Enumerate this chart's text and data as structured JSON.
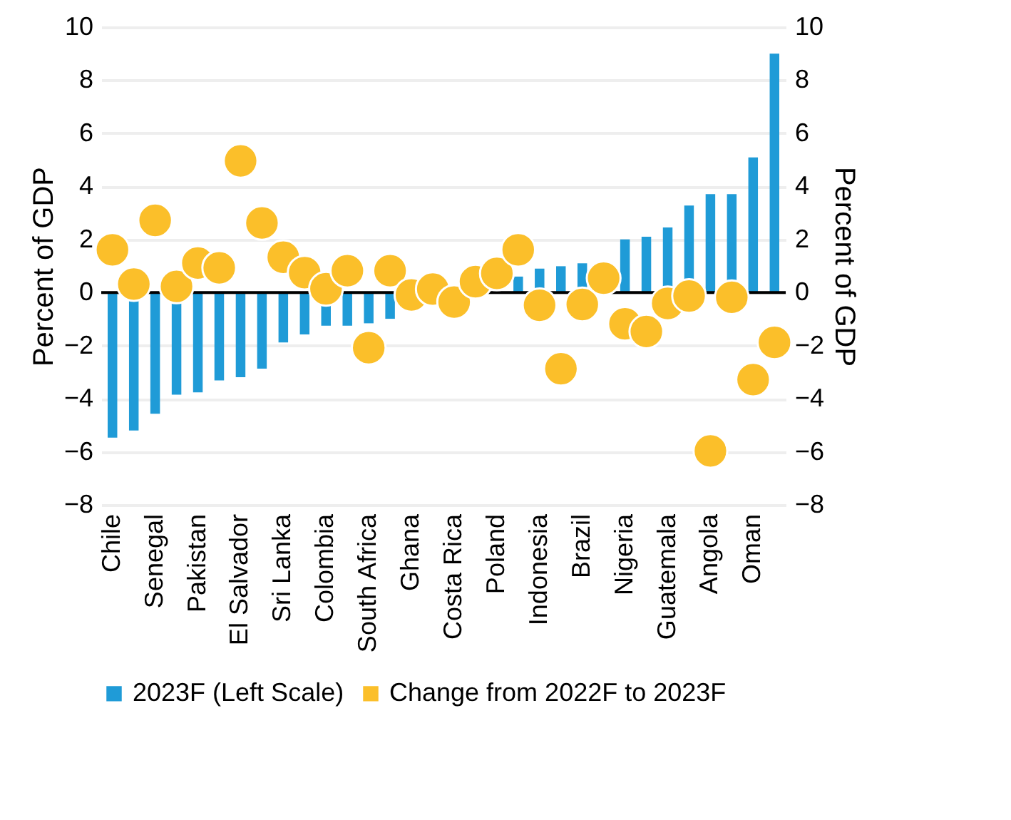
{
  "chart_data": {
    "type": "bar",
    "categories": [
      "Chile",
      null,
      "Senegal",
      null,
      "Pakistan",
      null,
      "El Salvador",
      null,
      "Sri Lanka",
      null,
      "Colombia",
      null,
      "South Africa",
      null,
      "Ghana",
      null,
      "Costa Rica",
      null,
      "Poland",
      null,
      "Indonesia",
      null,
      "Brazil",
      null,
      "Nigeria",
      null,
      "Guatemala",
      null,
      "Angola",
      null,
      "Oman",
      null
    ],
    "ylabel": "Percent of GDP",
    "y2label": "Percent of GDP",
    "ylim": [
      -8,
      10
    ],
    "yticks": [
      {
        "value": -8,
        "label": "−8"
      },
      {
        "value": -6,
        "label": "−6"
      },
      {
        "value": -4,
        "label": "−4"
      },
      {
        "value": -2,
        "label": "−2"
      },
      0,
      2,
      4,
      6,
      8,
      10
    ],
    "y2lim": [
      -8,
      10
    ],
    "y2ticks": [
      {
        "value": -8,
        "label": "−8"
      },
      {
        "value": -6,
        "label": "−6"
      },
      {
        "value": -4,
        "label": "−4"
      },
      {
        "value": -2,
        "label": "−2"
      },
      0,
      2,
      4,
      6,
      8,
      10
    ],
    "series": [
      {
        "name": "2023F (Left Scale)",
        "color": "#1f9bd7",
        "values": [
          -5.47,
          -5.2,
          -4.57,
          -3.85,
          -3.76,
          -3.31,
          -3.19,
          -2.87,
          -1.88,
          -1.58,
          -1.25,
          -1.25,
          -1.16,
          -0.99,
          null,
          null,
          null,
          null,
          null,
          0.6,
          0.9,
          0.99,
          1.1,
          null,
          2.0,
          2.1,
          2.45,
          3.28,
          3.71,
          3.71,
          5.09,
          9.0
        ]
      },
      {
        "name": "Change from 2022F to 2023F",
        "type": "scatter",
        "axis": "y2",
        "color": "#fbbf2a",
        "marker": "circle",
        "values": [
          1.61,
          0.32,
          2.72,
          0.23,
          1.11,
          0.93,
          4.96,
          2.62,
          1.33,
          0.75,
          0.14,
          0.82,
          -2.08,
          0.82,
          -0.09,
          0.13,
          -0.36,
          0.41,
          0.72,
          1.61,
          -0.48,
          -2.87,
          -0.45,
          0.54,
          -1.18,
          -1.47,
          -0.41,
          -0.13,
          -5.97,
          -0.18,
          -3.28,
          -1.88
        ]
      }
    ],
    "ref_lines": [
      {
        "axis": "y",
        "value": 0,
        "color": "#000000"
      }
    ],
    "grid": "y",
    "legend": "bottom"
  }
}
